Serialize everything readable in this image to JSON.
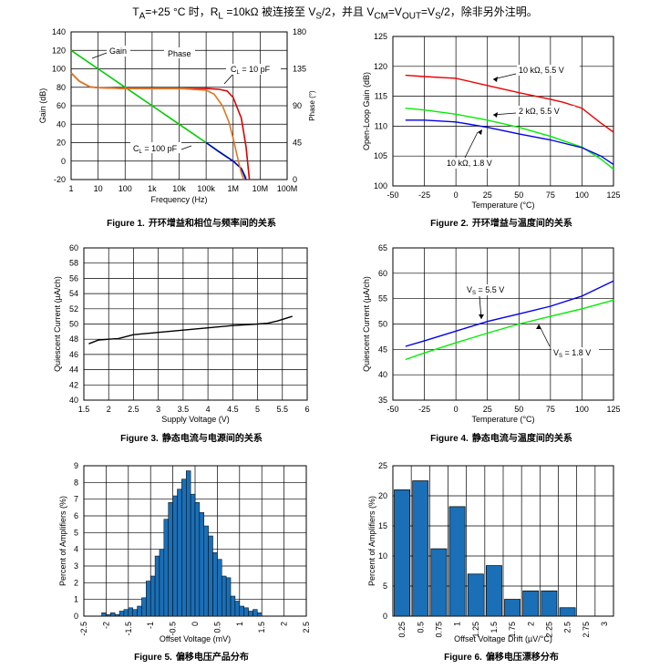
{
  "header": {
    "ta": "T",
    "ta_sub": "A",
    "ta_rest": "=+25 °C 时，R",
    "rl_sub": "L",
    "rl_rest": " =10kΩ 被连接至 V",
    "vs_sub": "S",
    "vs_rest": "/2，并且 V",
    "vcm_sub": "CM",
    "eq1": "=V",
    "vout_sub": "OUT",
    "eq2": "=V",
    "vs2_sub": "S",
    "tail": "/2，除非另外注明。"
  },
  "captions": [
    {
      "num": "Figure 1.",
      "text": "开环增益和相位与频率间的关系"
    },
    {
      "num": "Figure 2.",
      "text": "开环增益与温度间的关系"
    },
    {
      "num": "Figure 3.",
      "text": "静态电流与电源间的关系"
    },
    {
      "num": "Figure 4.",
      "text": "静态电流与温度间的关系"
    },
    {
      "num": "Figure 5.",
      "text": "偏移电压产品分布"
    },
    {
      "num": "Figure 6.",
      "text": "偏移电压漂移分布"
    }
  ],
  "chart_data": [
    {
      "type": "line",
      "xlabel": "Frequency (Hz)",
      "ylabel": "Gain (dB)",
      "y2label": "Phase (°)",
      "xscale": "log",
      "xlim": [
        1,
        100000000
      ],
      "ylim": [
        -20,
        140
      ],
      "y2lim": [
        0,
        180
      ],
      "xticks": [
        "1",
        "10",
        "100",
        "1k",
        "10k",
        "100k",
        "1M",
        "10M",
        "100M"
      ],
      "yticks": [
        "-20",
        "0",
        "20",
        "40",
        "60",
        "80",
        "100",
        "120",
        "140"
      ],
      "y2ticks": [
        "0",
        "45",
        "90",
        "135",
        "180"
      ],
      "annotations": {
        "gain": "Gain",
        "phase": "Phase",
        "cl10": "C",
        "cl10_sub": "L",
        "cl10_rest": " = 10 pF",
        "cl100": "C",
        "cl100_sub": "L",
        "cl100_rest": " = 100 pF"
      },
      "series": [
        {
          "role": "gain",
          "color": "#00cc00",
          "x": [
            1,
            10,
            100,
            1000,
            10000,
            100000,
            1000000,
            2000000,
            3000000
          ],
          "y": [
            120,
            100,
            80,
            60,
            40,
            20,
            0,
            -8,
            -18
          ]
        },
        {
          "role": "gain-100pF",
          "color": "#0000cc",
          "x": [
            100000,
            300000,
            1000000,
            2000000,
            3000000
          ],
          "y": [
            20,
            10,
            0,
            -8,
            -20
          ]
        },
        {
          "role": "phase-10pF",
          "color": "#dd0000",
          "x": [
            1,
            2,
            5,
            10,
            100,
            1000,
            10000,
            100000,
            300000,
            600000,
            1000000,
            2000000,
            3000000,
            4000000
          ],
          "y": [
            130,
            120,
            113,
            112,
            111,
            111,
            111,
            111,
            110,
            108,
            100,
            75,
            40,
            0
          ]
        },
        {
          "role": "phase-100pF",
          "color": "#dd7722",
          "x": [
            1,
            2,
            5,
            10,
            100,
            1000,
            10000,
            100000,
            200000,
            400000,
            700000,
            1000000,
            1500000,
            2000000,
            2500000
          ],
          "y": [
            130,
            120,
            113,
            112,
            111,
            111,
            111,
            109,
            104,
            90,
            70,
            50,
            25,
            8,
            0
          ]
        }
      ]
    },
    {
      "type": "line",
      "xlabel": "Temperature (°C)",
      "ylabel": "Open-Loop Gain (dB)",
      "xlim": [
        -50,
        125
      ],
      "ylim": [
        100,
        125
      ],
      "xticks": [
        "-50",
        "-25",
        "0",
        "25",
        "50",
        "75",
        "100",
        "125"
      ],
      "yticks": [
        "100",
        "105",
        "110",
        "115",
        "120",
        "125"
      ],
      "series": [
        {
          "name": "10 kΩ, 5.5 V",
          "color": "#ee0000",
          "x": [
            -40,
            -25,
            0,
            25,
            50,
            75,
            85,
            100,
            115,
            125
          ],
          "y": [
            118.5,
            118.3,
            118,
            116.8,
            115.6,
            114.5,
            114,
            113,
            110.5,
            109
          ]
        },
        {
          "name": "2 kΩ, 5.5 V",
          "color": "#00ee00",
          "x": [
            -40,
            -25,
            0,
            25,
            50,
            75,
            100,
            115,
            125
          ],
          "y": [
            113,
            112.7,
            112,
            111,
            109.8,
            108.3,
            106.5,
            104.5,
            102.8
          ]
        },
        {
          "name": "10 kΩ, 1.8 V",
          "color": "#0000ee",
          "x": [
            -40,
            -25,
            0,
            25,
            50,
            75,
            100,
            115,
            125
          ],
          "y": [
            111,
            111,
            110.7,
            109.8,
            108.7,
            107.7,
            106.4,
            105,
            103.6
          ]
        }
      ]
    },
    {
      "type": "line",
      "xlabel": "Supply Voltage (V)",
      "ylabel": "Quiescent Current (µA/ch)",
      "xlim": [
        1.5,
        6
      ],
      "ylim": [
        40,
        60
      ],
      "xticks": [
        "1.5",
        "2",
        "2.5",
        "3",
        "3.5",
        "4",
        "4.5",
        "5",
        "5.5",
        "6"
      ],
      "yticks": [
        "40",
        "42",
        "44",
        "46",
        "48",
        "50",
        "52",
        "54",
        "56",
        "58",
        "60"
      ],
      "series": [
        {
          "color": "#000000",
          "x": [
            1.6,
            1.8,
            2.0,
            2.2,
            2.5,
            3.0,
            3.5,
            4.0,
            4.5,
            5.0,
            5.2,
            5.4,
            5.7
          ],
          "y": [
            47.4,
            47.9,
            48.0,
            48.1,
            48.6,
            48.9,
            49.2,
            49.5,
            49.8,
            50.0,
            50.1,
            50.4,
            51.0
          ]
        }
      ]
    },
    {
      "type": "line",
      "xlabel": "Temperature (°C)",
      "ylabel": "Quiescent Current (µA/ch)",
      "xlim": [
        -50,
        125
      ],
      "ylim": [
        35,
        65
      ],
      "xticks": [
        "-50",
        "-25",
        "0",
        "25",
        "50",
        "75",
        "100",
        "125"
      ],
      "yticks": [
        "35",
        "40",
        "45",
        "50",
        "55",
        "60",
        "65"
      ],
      "series": [
        {
          "name": "V",
          "name_sub": "S",
          "name_rest": " = 5.5 V",
          "color": "#0000ee",
          "x": [
            -40,
            -25,
            0,
            25,
            50,
            75,
            100,
            125
          ],
          "y": [
            45.6,
            46.7,
            48.6,
            50.5,
            52,
            53.5,
            55.5,
            58.5
          ]
        },
        {
          "name": "V",
          "name_sub": "S",
          "name_rest": " = 1.8 V",
          "color": "#00ee00",
          "x": [
            -40,
            -25,
            0,
            25,
            50,
            75,
            100,
            125
          ],
          "y": [
            43,
            44.3,
            46.3,
            48.2,
            50,
            51.5,
            53,
            54.7
          ]
        }
      ]
    },
    {
      "type": "bar",
      "xlabel": "Offset Voltage (mV)",
      "ylabel": "Percent of Amplifiers (%)",
      "xlim": [
        -2.5,
        2.5
      ],
      "ylim": [
        0,
        9
      ],
      "xticks": [
        "-2.5",
        "-2",
        "-1.5",
        "-1",
        "-0.5",
        "0",
        "0.5",
        "1",
        "1.5",
        "2",
        "2.5"
      ],
      "yticks": [
        "0",
        "1",
        "2",
        "3",
        "4",
        "5",
        "6",
        "7",
        "8",
        "9"
      ],
      "bar_color": "#1a6fb6",
      "bin_width": 0.1,
      "centers": [
        -2.05,
        -1.95,
        -1.85,
        -1.75,
        -1.65,
        -1.55,
        -1.45,
        -1.35,
        -1.25,
        -1.15,
        -1.05,
        -0.95,
        -0.85,
        -0.75,
        -0.65,
        -0.55,
        -0.45,
        -0.35,
        -0.25,
        -0.15,
        -0.05,
        0.05,
        0.15,
        0.25,
        0.35,
        0.45,
        0.55,
        0.65,
        0.75,
        0.85,
        0.95,
        1.05,
        1.15,
        1.25,
        1.35,
        1.45
      ],
      "values": [
        0.2,
        0.1,
        0.2,
        0.1,
        0.3,
        0.4,
        0.5,
        0.4,
        0.6,
        1.1,
        2.1,
        2.4,
        3.6,
        4.0,
        5.8,
        6.8,
        7.2,
        7.6,
        8.2,
        8.7,
        7.3,
        6.8,
        6.2,
        5.4,
        4.8,
        3.8,
        3.4,
        2.4,
        2.3,
        1.2,
        0.9,
        0.6,
        0.5,
        0.3,
        0.4,
        0.2
      ]
    },
    {
      "type": "bar",
      "xlabel": "Offset Voltage Drift (µV/°C)",
      "ylabel": "Percent of Amplifiers (%)",
      "ylim": [
        0,
        25
      ],
      "yticks": [
        "0",
        "5",
        "10",
        "15",
        "20",
        "25"
      ],
      "categories": [
        "0.25",
        "0.5",
        "0.75",
        "1",
        "1.25",
        "1.5",
        "1.75",
        "2",
        "2.25",
        "2.5",
        "2.75",
        "3"
      ],
      "values": [
        21,
        22.5,
        11.2,
        18.2,
        7,
        8.4,
        2.8,
        4.2,
        4.2,
        1.4,
        0,
        0
      ],
      "bar_color": "#1a6fb6"
    }
  ]
}
